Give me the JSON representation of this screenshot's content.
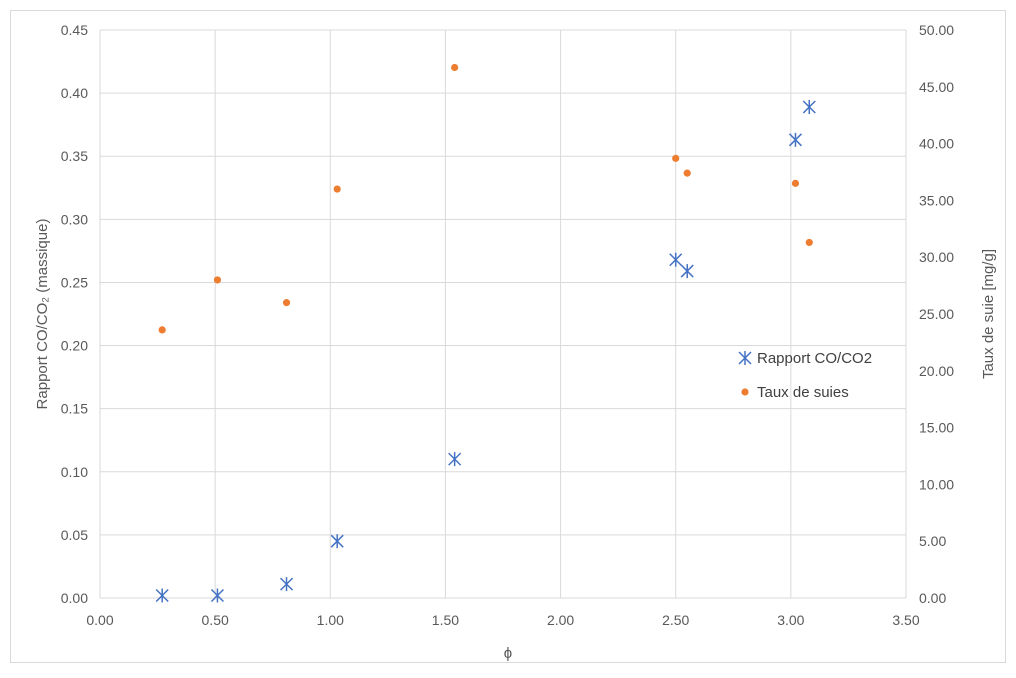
{
  "chart_data": {
    "type": "scatter",
    "title": "",
    "xlabel": "ϕ",
    "ylabel_left": "Rapport CO/CO₂ (massique)",
    "ylabel_right": "Taux de suie [mg/g]",
    "xlim": [
      0,
      3.5
    ],
    "ylim_left": [
      0,
      0.45
    ],
    "ylim_right": [
      0,
      50
    ],
    "x_ticks": [
      "0.00",
      "0.50",
      "1.00",
      "1.50",
      "2.00",
      "2.50",
      "3.00",
      "3.50"
    ],
    "y_left_ticks": [
      "0.00",
      "0.05",
      "0.10",
      "0.15",
      "0.20",
      "0.25",
      "0.30",
      "0.35",
      "0.40",
      "0.45"
    ],
    "y_right_ticks": [
      "0.00",
      "5.00",
      "10.00",
      "15.00",
      "20.00",
      "25.00",
      "30.00",
      "35.00",
      "40.00",
      "45.00",
      "50.00"
    ],
    "grid": true,
    "legend_position": "right",
    "series": [
      {
        "name": "Rapport CO/CO2",
        "axis": "left",
        "marker": "asterisk",
        "color": "#4472C4",
        "x": [
          0.27,
          0.51,
          0.81,
          1.03,
          1.54,
          2.5,
          2.55,
          3.02,
          3.08
        ],
        "y": [
          0.002,
          0.002,
          0.011,
          0.045,
          0.11,
          0.268,
          0.259,
          0.363,
          0.389
        ]
      },
      {
        "name": "Taux de suies",
        "axis": "right",
        "marker": "circle",
        "color": "#ED7D31",
        "x": [
          0.27,
          0.51,
          0.81,
          1.03,
          1.54,
          2.5,
          2.55,
          3.02,
          3.08
        ],
        "y": [
          23.6,
          28.0,
          26.0,
          36.0,
          46.7,
          38.7,
          37.4,
          36.5,
          31.3
        ]
      }
    ]
  }
}
